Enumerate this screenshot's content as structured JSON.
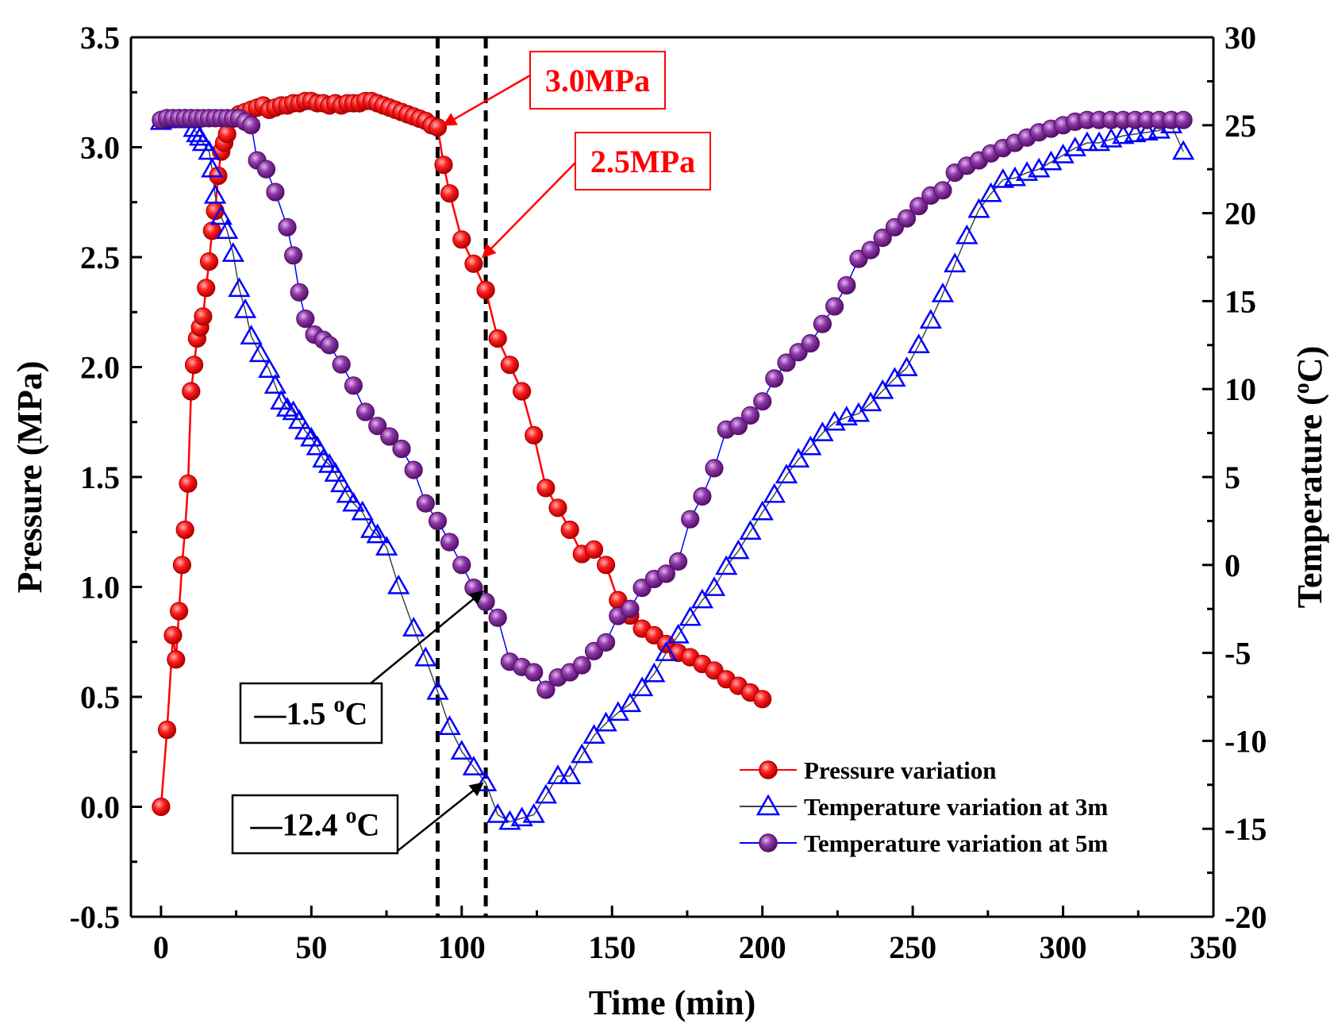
{
  "chart_data": {
    "type": "line",
    "xlabel": "Time (min)",
    "ylabel": "Pressure (MPa)",
    "y2label_main": "Temperature (",
    "y2label_sup": "o",
    "y2label_end": "C)",
    "xlim": [
      -10,
      350
    ],
    "ylim": [
      -0.5,
      3.5
    ],
    "y2lim": [
      -20,
      30
    ],
    "xticks": [
      0,
      50,
      100,
      150,
      200,
      250,
      300,
      350
    ],
    "xtick_labels": [
      "0",
      "50",
      "100",
      "150",
      "200",
      "250",
      "300",
      "350"
    ],
    "yticks": [
      -0.5,
      0.0,
      0.5,
      1.0,
      1.5,
      2.0,
      2.5,
      3.0,
      3.5
    ],
    "ytick_labels": [
      "-0.5",
      "0.0",
      "0.5",
      "1.0",
      "1.5",
      "2.0",
      "2.5",
      "3.0",
      "3.5"
    ],
    "y2ticks": [
      -20,
      -15,
      -10,
      -5,
      0,
      5,
      10,
      15,
      20,
      25,
      30
    ],
    "y2tick_labels": [
      "-20",
      "-15",
      "-10",
      "-5",
      "0",
      "5",
      "10",
      "15",
      "20",
      "25",
      "30"
    ],
    "colors": {
      "pressure": "#ff0000",
      "temp3m": "#0000ff",
      "temp5m": "#7b1fa2",
      "temp3m_line": "#444444",
      "annotation": "#ff0000"
    },
    "vertical_lines_x": [
      92,
      108
    ],
    "series": [
      {
        "name": "Pressure variation",
        "axis": "left",
        "marker": "sphere",
        "x": [
          0,
          2,
          4,
          5,
          6,
          7,
          8,
          9,
          10,
          11,
          12,
          13,
          14,
          15,
          16,
          17,
          18,
          19,
          20,
          21,
          22,
          24,
          26,
          28,
          30,
          32,
          34,
          36,
          38,
          40,
          42,
          44,
          46,
          48,
          50,
          52,
          54,
          56,
          58,
          60,
          62,
          64,
          66,
          68,
          70,
          72,
          74,
          76,
          78,
          80,
          82,
          84,
          86,
          88,
          90,
          92,
          94,
          96,
          100,
          104,
          108,
          112,
          116,
          120,
          124,
          128,
          132,
          136,
          140,
          144,
          148,
          152,
          156,
          160,
          164,
          168,
          172,
          176,
          180,
          184,
          188,
          192,
          196,
          200
        ],
        "y": [
          0.0,
          0.35,
          0.78,
          0.67,
          0.89,
          1.1,
          1.26,
          1.47,
          1.89,
          2.01,
          2.13,
          2.18,
          2.23,
          2.36,
          2.48,
          2.62,
          2.71,
          2.87,
          2.98,
          3.02,
          3.06,
          3.13,
          3.15,
          3.16,
          3.17,
          3.18,
          3.19,
          3.17,
          3.18,
          3.19,
          3.19,
          3.2,
          3.2,
          3.21,
          3.21,
          3.2,
          3.2,
          3.19,
          3.2,
          3.19,
          3.2,
          3.2,
          3.2,
          3.21,
          3.21,
          3.2,
          3.19,
          3.18,
          3.17,
          3.16,
          3.15,
          3.14,
          3.13,
          3.12,
          3.1,
          3.09,
          2.92,
          2.79,
          2.58,
          2.47,
          2.35,
          2.13,
          2.01,
          1.89,
          1.69,
          1.45,
          1.36,
          1.26,
          1.15,
          1.17,
          1.1,
          0.94,
          0.87,
          0.81,
          0.78,
          0.74,
          0.7,
          0.68,
          0.65,
          0.62,
          0.58,
          0.55,
          0.52,
          0.49
        ]
      },
      {
        "name": "Temperature variation at 3m",
        "axis": "right",
        "marker": "triangle",
        "x": [
          0,
          2,
          4,
          6,
          8,
          10,
          11,
          12,
          13,
          14,
          16,
          17,
          18,
          20,
          22,
          24,
          26,
          28,
          30,
          33,
          36,
          38,
          40,
          42,
          44,
          46,
          48,
          50,
          52,
          54,
          56,
          58,
          60,
          62,
          64,
          67,
          70,
          72,
          75,
          79,
          84,
          88,
          92,
          96,
          100,
          104,
          108,
          112,
          116,
          120,
          124,
          128,
          132,
          136,
          140,
          144,
          148,
          152,
          156,
          160,
          164,
          168,
          172,
          176,
          180,
          184,
          188,
          192,
          196,
          200,
          204,
          208,
          212,
          216,
          220,
          224,
          228,
          232,
          236,
          240,
          244,
          248,
          252,
          256,
          260,
          264,
          268,
          272,
          276,
          280,
          284,
          288,
          292,
          296,
          300,
          304,
          308,
          312,
          316,
          320,
          324,
          328,
          332,
          336,
          340
        ],
        "y": [
          25.2,
          25.3,
          25.3,
          25.3,
          25.3,
          25.3,
          24.8,
          24.5,
          24.3,
          24.0,
          23.5,
          22.5,
          21.0,
          19.8,
          19.0,
          17.7,
          15.7,
          14.5,
          13.0,
          12.0,
          11.1,
          10.2,
          9.3,
          8.9,
          8.7,
          8.2,
          7.6,
          7.2,
          6.7,
          6.0,
          5.7,
          5.2,
          4.6,
          4.0,
          3.5,
          3.0,
          2.0,
          1.7,
          1.0,
          -1.2,
          -3.6,
          -5.3,
          -7.2,
          -9.2,
          -10.6,
          -11.5,
          -12.4,
          -14.2,
          -14.6,
          -14.4,
          -14.2,
          -13.1,
          -12.0,
          -12.0,
          -10.8,
          -9.7,
          -9.0,
          -8.4,
          -7.9,
          -7.0,
          -6.2,
          -5.0,
          -4.0,
          -3.0,
          -2.0,
          -1.3,
          -0.1,
          0.8,
          1.9,
          3.0,
          4.0,
          5.1,
          6.0,
          6.7,
          7.5,
          8.1,
          8.4,
          8.6,
          9.2,
          9.9,
          10.6,
          11.2,
          12.5,
          13.9,
          15.4,
          17.1,
          18.7,
          20.2,
          21.1,
          21.9,
          22.0,
          22.3,
          22.5,
          22.9,
          23.3,
          23.7,
          24.0,
          24.0,
          24.2,
          24.4,
          24.5,
          24.6,
          24.7,
          25.0,
          23.5
        ]
      },
      {
        "name": "Temperature variation at 5m",
        "axis": "right",
        "marker": "sphere",
        "x": [
          0,
          2,
          4,
          6,
          8,
          10,
          12,
          14,
          16,
          18,
          20,
          22,
          24,
          26,
          28,
          30,
          32,
          35,
          38,
          42,
          44,
          46,
          48,
          51,
          54,
          56,
          60,
          64,
          68,
          72,
          76,
          80,
          84,
          88,
          92,
          96,
          100,
          104,
          108,
          112,
          116,
          120,
          124,
          128,
          132,
          136,
          140,
          144,
          148,
          152,
          156,
          160,
          164,
          168,
          172,
          176,
          180,
          184,
          188,
          192,
          196,
          200,
          204,
          208,
          212,
          216,
          220,
          224,
          228,
          232,
          236,
          240,
          244,
          248,
          252,
          256,
          260,
          264,
          268,
          272,
          276,
          280,
          284,
          288,
          292,
          296,
          300,
          304,
          308,
          312,
          316,
          320,
          324,
          328,
          332,
          336,
          340
        ],
        "y": [
          25.3,
          25.4,
          25.4,
          25.4,
          25.4,
          25.4,
          25.4,
          25.4,
          25.4,
          25.4,
          25.4,
          25.4,
          25.4,
          25.4,
          25.2,
          25.0,
          23.0,
          22.5,
          21.2,
          19.2,
          17.6,
          15.5,
          14.0,
          13.1,
          12.8,
          12.5,
          11.4,
          10.2,
          8.7,
          7.9,
          7.3,
          6.6,
          5.4,
          3.5,
          2.5,
          1.3,
          0.0,
          -1.3,
          -2.1,
          -3.0,
          -5.5,
          -5.8,
          -6.1,
          -7.1,
          -6.4,
          -6.1,
          -5.7,
          -4.9,
          -4.4,
          -2.9,
          -2.5,
          -1.3,
          -0.8,
          -0.5,
          0.2,
          2.6,
          3.9,
          5.5,
          7.7,
          7.9,
          8.5,
          9.3,
          10.6,
          11.5,
          12.1,
          12.6,
          13.7,
          14.7,
          15.9,
          17.4,
          17.9,
          18.6,
          19.2,
          19.7,
          20.4,
          21.0,
          21.3,
          22.3,
          22.7,
          23.0,
          23.4,
          23.7,
          24.0,
          24.3,
          24.6,
          24.8,
          25.0,
          25.2,
          25.3,
          25.3,
          25.3,
          25.3,
          25.3,
          25.3,
          25.3,
          25.3,
          25.3
        ]
      }
    ],
    "legend": {
      "position": "bottom-right",
      "entries": [
        "Pressure variation",
        "Temperature variation at 3m",
        "Temperature variation at 5m"
      ]
    },
    "annotations": [
      {
        "text": "3.0MPa",
        "color": "#ff0000",
        "target_x": 94,
        "target_y": 3.1,
        "axis": "left"
      },
      {
        "text": "2.5MPa",
        "color": "#ff0000",
        "target_x": 107,
        "target_y": 2.5,
        "axis": "left"
      },
      {
        "text_pre": "—1.5 ",
        "text_sup": "o",
        "text_post": "C",
        "color": "#000000",
        "target_x": 107,
        "target_y": -1.5,
        "axis": "right"
      },
      {
        "text_pre": "—12.4 ",
        "text_sup": "o",
        "text_post": "C",
        "color": "#000000",
        "target_x": 107,
        "target_y": -12.4,
        "axis": "right"
      }
    ]
  }
}
